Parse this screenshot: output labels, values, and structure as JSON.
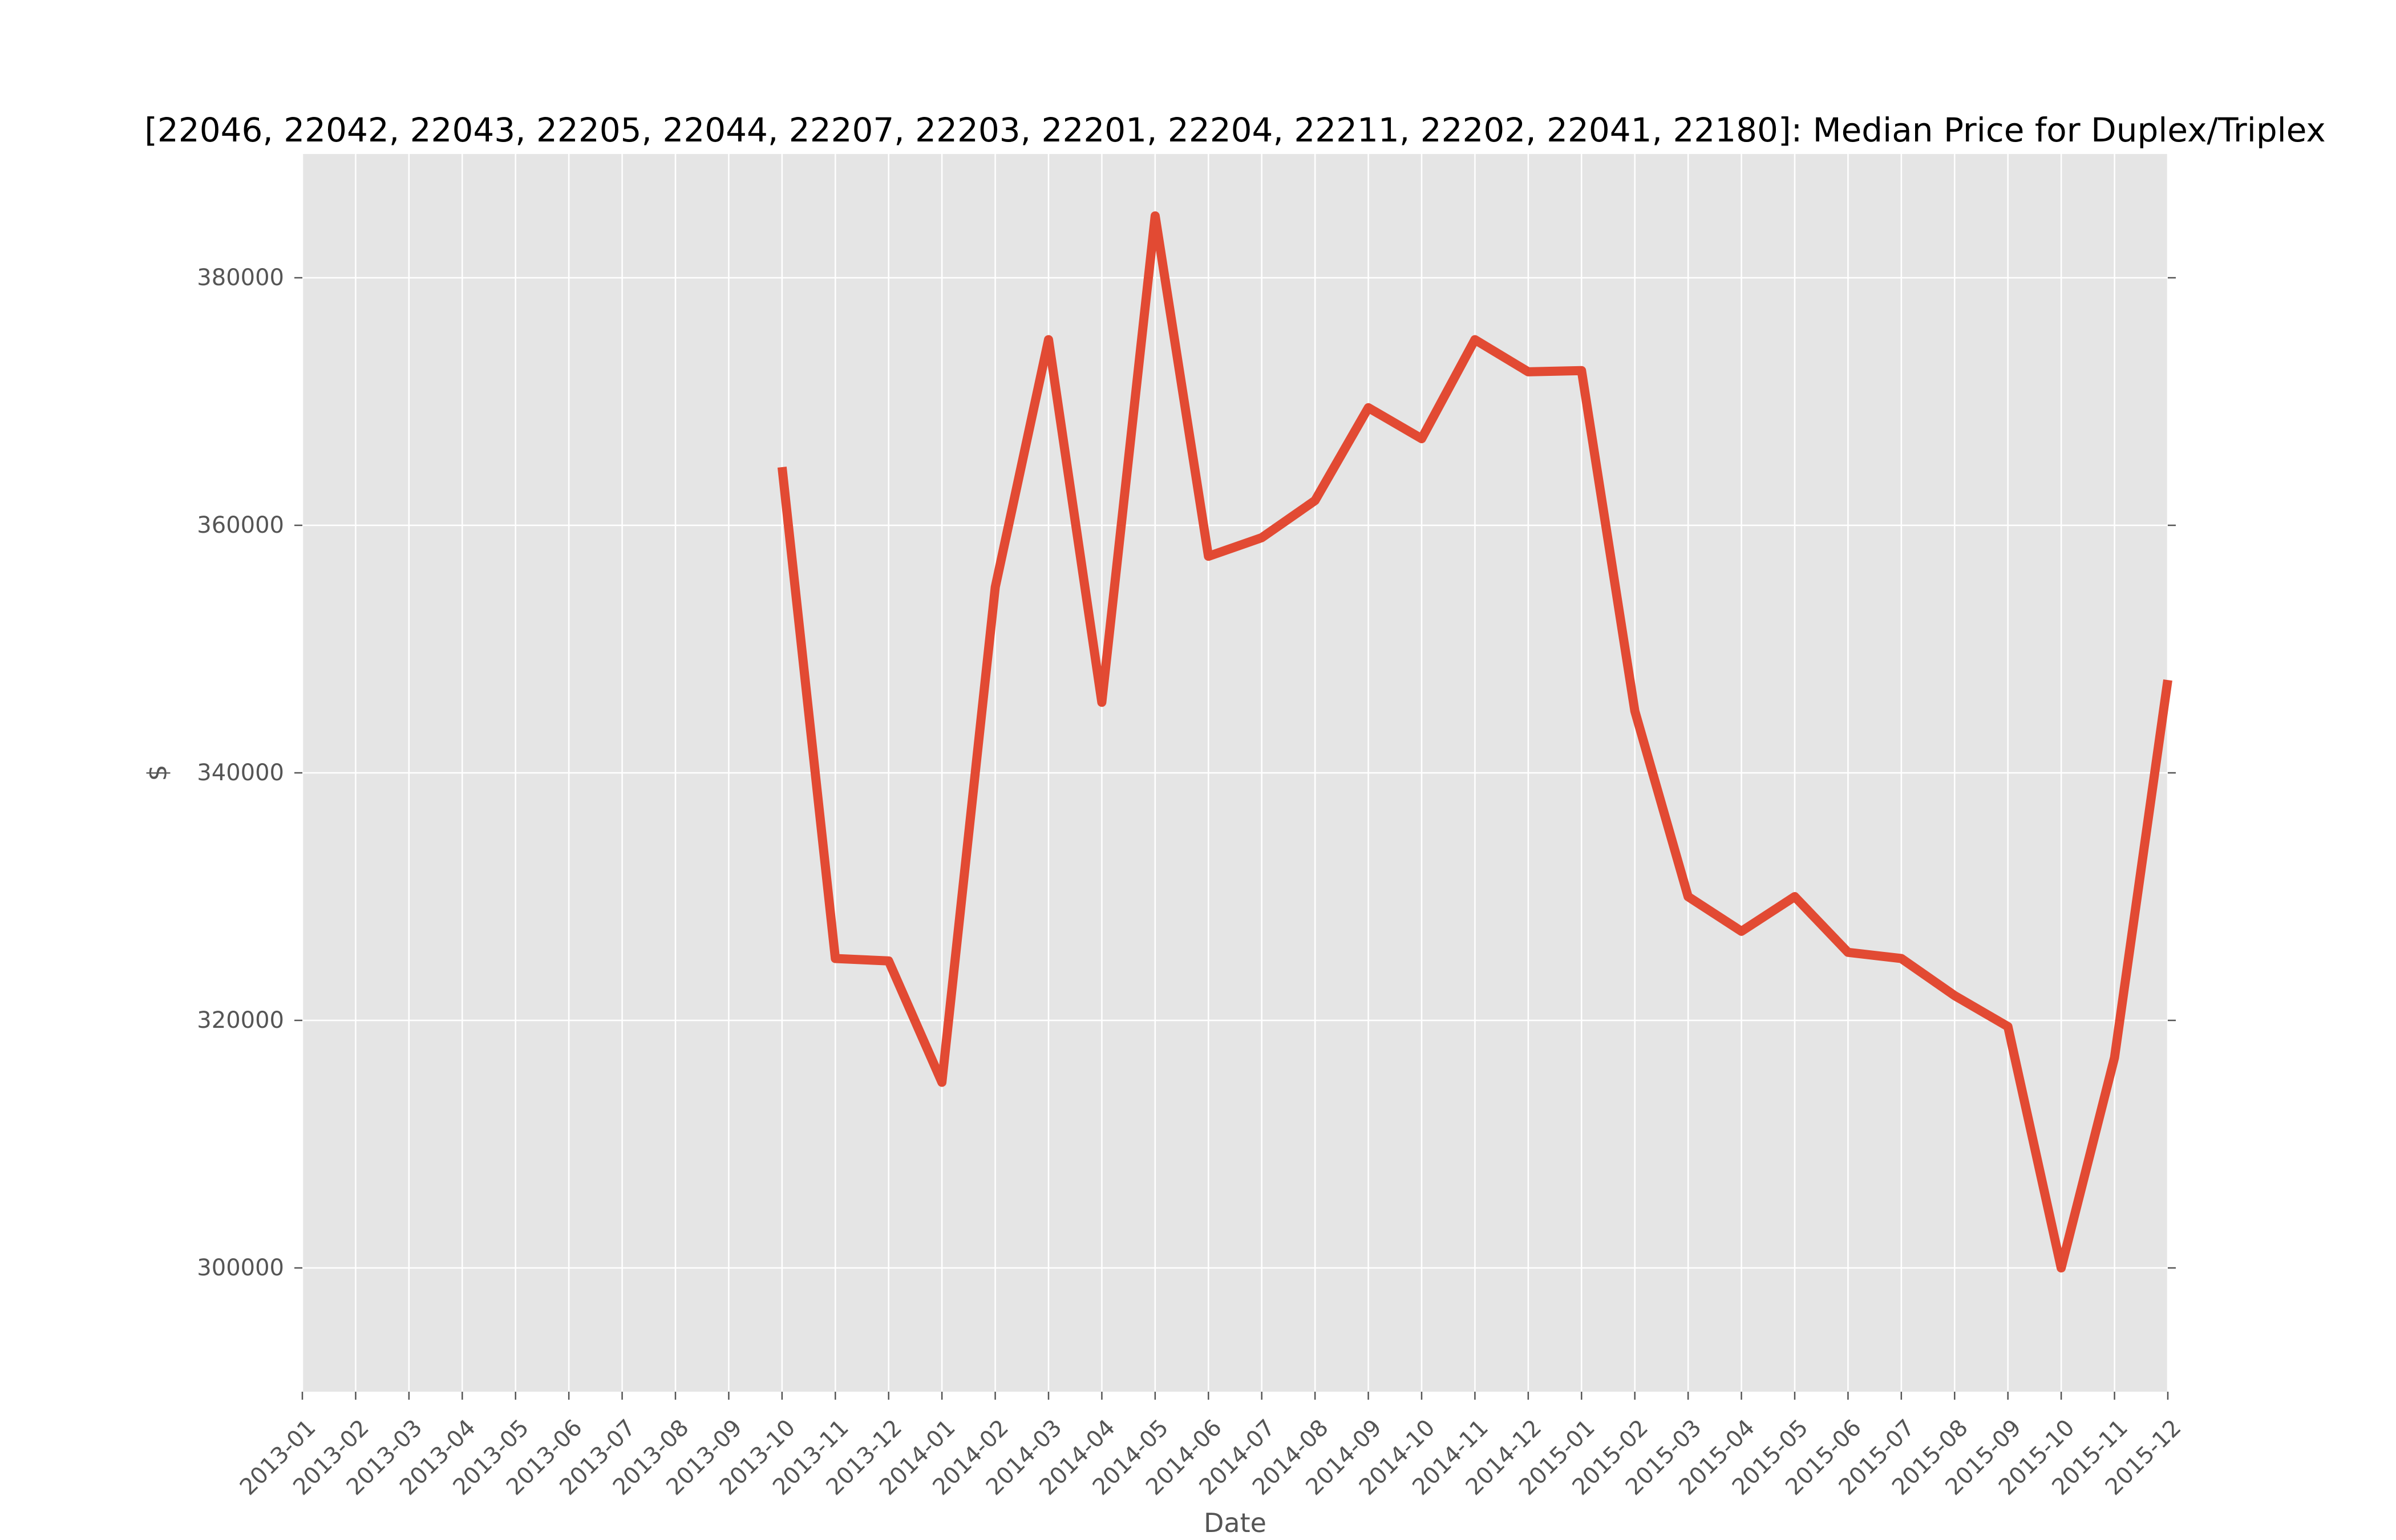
{
  "chart_data": {
    "type": "line",
    "title": "[22046, 22042, 22043, 22205, 22044, 22207, 22203, 22201, 22204, 22211, 22202, 22041, 22180]: Median Price for Duplex/Triplex",
    "xlabel": "Date",
    "ylabel": "$",
    "categories": [
      "2013-01",
      "2013-02",
      "2013-03",
      "2013-04",
      "2013-05",
      "2013-06",
      "2013-07",
      "2013-08",
      "2013-09",
      "2013-10",
      "2013-11",
      "2013-12",
      "2014-01",
      "2014-02",
      "2014-03",
      "2014-04",
      "2014-05",
      "2014-06",
      "2014-07",
      "2014-08",
      "2014-09",
      "2014-10",
      "2014-11",
      "2014-12",
      "2015-01",
      "2015-02",
      "2015-03",
      "2015-04",
      "2015-05",
      "2015-06",
      "2015-07",
      "2015-08",
      "2015-09",
      "2015-10",
      "2015-11",
      "2015-12"
    ],
    "ylim": [
      290000,
      390000
    ],
    "yticks": [
      300000,
      320000,
      340000,
      360000,
      380000
    ],
    "grid": true,
    "series": [
      {
        "values": [
          null,
          null,
          null,
          null,
          null,
          null,
          null,
          null,
          null,
          364700,
          325000,
          324800,
          315000,
          355000,
          375000,
          345700,
          385000,
          357500,
          359000,
          362000,
          369500,
          367000,
          375000,
          372400,
          372500,
          345000,
          330000,
          327200,
          330000,
          325500,
          325000,
          322000,
          319500,
          300000,
          317000,
          347500
        ]
      }
    ],
    "colors": {
      "line": "#E24A33",
      "plot_background": "#E5E5E5",
      "grid": "#FFFFFF"
    }
  }
}
